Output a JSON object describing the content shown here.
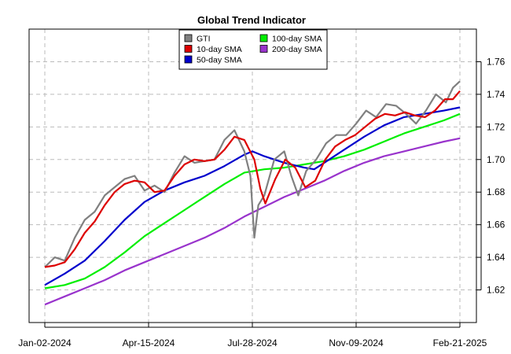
{
  "chart_data": {
    "type": "line",
    "title": "Global Trend Indicator",
    "xlabel": "",
    "ylabel": "",
    "x_ticks": [
      "Jan-02-2024",
      "Apr-15-2024",
      "Jul-28-2024",
      "Nov-09-2024",
      "Feb-21-2025"
    ],
    "x_range": [
      "2024-01-02",
      "2025-02-21"
    ],
    "y_ticks": [
      1.62,
      1.64,
      1.66,
      1.68,
      1.7,
      1.72,
      1.74,
      1.76
    ],
    "ylim": [
      1.6,
      1.78
    ],
    "y_axis_position": "right",
    "grid": true,
    "grid_style": "dashed",
    "legend_position": "top-center",
    "series": [
      {
        "name": "GTI",
        "color": "#808080",
        "x": [
          "2024-01-02",
          "2024-01-12",
          "2024-01-22",
          "2024-02-01",
          "2024-02-11",
          "2024-02-21",
          "2024-03-02",
          "2024-03-12",
          "2024-03-22",
          "2024-04-01",
          "2024-04-11",
          "2024-04-21",
          "2024-05-01",
          "2024-05-11",
          "2024-05-21",
          "2024-05-31",
          "2024-06-10",
          "2024-06-20",
          "2024-06-30",
          "2024-07-10",
          "2024-07-20",
          "2024-07-26",
          "2024-07-30",
          "2024-08-03",
          "2024-08-09",
          "2024-08-19",
          "2024-08-29",
          "2024-09-05",
          "2024-09-12",
          "2024-09-20",
          "2024-09-30",
          "2024-10-10",
          "2024-10-20",
          "2024-10-30",
          "2024-11-09",
          "2024-11-19",
          "2024-11-29",
          "2024-12-09",
          "2024-12-19",
          "2024-12-29",
          "2025-01-08",
          "2025-01-18",
          "2025-01-28",
          "2025-02-07",
          "2025-02-14",
          "2025-02-21"
        ],
        "values": [
          1.634,
          1.64,
          1.638,
          1.652,
          1.663,
          1.668,
          1.678,
          1.683,
          1.688,
          1.69,
          1.681,
          1.684,
          1.68,
          1.692,
          1.702,
          1.698,
          1.699,
          1.7,
          1.712,
          1.718,
          1.705,
          1.69,
          1.652,
          1.672,
          1.678,
          1.7,
          1.705,
          1.69,
          1.678,
          1.693,
          1.7,
          1.71,
          1.715,
          1.715,
          1.722,
          1.73,
          1.726,
          1.734,
          1.733,
          1.728,
          1.722,
          1.73,
          1.74,
          1.735,
          1.744,
          1.748
        ]
      },
      {
        "name": "10-day SMA",
        "color": "#dd0000",
        "x": [
          "2024-01-02",
          "2024-01-12",
          "2024-01-22",
          "2024-02-01",
          "2024-02-11",
          "2024-02-21",
          "2024-03-02",
          "2024-03-12",
          "2024-03-22",
          "2024-04-01",
          "2024-04-11",
          "2024-04-21",
          "2024-05-01",
          "2024-05-11",
          "2024-05-21",
          "2024-05-31",
          "2024-06-10",
          "2024-06-20",
          "2024-06-30",
          "2024-07-10",
          "2024-07-20",
          "2024-07-30",
          "2024-08-05",
          "2024-08-10",
          "2024-08-20",
          "2024-08-30",
          "2024-09-09",
          "2024-09-19",
          "2024-09-29",
          "2024-10-09",
          "2024-10-19",
          "2024-10-29",
          "2024-11-08",
          "2024-11-18",
          "2024-11-28",
          "2024-12-08",
          "2024-12-18",
          "2024-12-28",
          "2025-01-07",
          "2025-01-17",
          "2025-01-27",
          "2025-02-06",
          "2025-02-14",
          "2025-02-21"
        ],
        "values": [
          1.634,
          1.635,
          1.637,
          1.645,
          1.655,
          1.662,
          1.672,
          1.68,
          1.685,
          1.687,
          1.686,
          1.68,
          1.681,
          1.69,
          1.697,
          1.7,
          1.699,
          1.7,
          1.706,
          1.714,
          1.712,
          1.7,
          1.682,
          1.673,
          1.688,
          1.7,
          1.695,
          1.683,
          1.687,
          1.7,
          1.708,
          1.712,
          1.715,
          1.72,
          1.725,
          1.728,
          1.727,
          1.729,
          1.727,
          1.726,
          1.73,
          1.737,
          1.737,
          1.742
        ]
      },
      {
        "name": "50-day SMA",
        "color": "#0000cc",
        "x": [
          "2024-01-02",
          "2024-01-22",
          "2024-02-11",
          "2024-03-02",
          "2024-03-22",
          "2024-04-11",
          "2024-05-01",
          "2024-05-21",
          "2024-06-10",
          "2024-06-30",
          "2024-07-20",
          "2024-07-28",
          "2024-08-09",
          "2024-08-29",
          "2024-09-18",
          "2024-09-28",
          "2024-10-08",
          "2024-10-28",
          "2024-11-17",
          "2024-12-07",
          "2024-12-27",
          "2025-01-16",
          "2025-02-05",
          "2025-02-21"
        ],
        "values": [
          1.623,
          1.63,
          1.638,
          1.65,
          1.663,
          1.674,
          1.681,
          1.686,
          1.69,
          1.696,
          1.703,
          1.705,
          1.702,
          1.698,
          1.695,
          1.694,
          1.698,
          1.706,
          1.714,
          1.721,
          1.726,
          1.728,
          1.73,
          1.732
        ]
      },
      {
        "name": "100-day SMA",
        "color": "#00ee00",
        "x": [
          "2024-01-02",
          "2024-01-22",
          "2024-02-11",
          "2024-03-02",
          "2024-03-22",
          "2024-04-11",
          "2024-05-01",
          "2024-05-21",
          "2024-06-10",
          "2024-06-30",
          "2024-07-20",
          "2024-08-09",
          "2024-08-29",
          "2024-09-18",
          "2024-10-08",
          "2024-10-28",
          "2024-11-17",
          "2024-12-07",
          "2024-12-27",
          "2025-01-16",
          "2025-02-05",
          "2025-02-21"
        ],
        "values": [
          1.621,
          1.623,
          1.627,
          1.634,
          1.643,
          1.653,
          1.661,
          1.669,
          1.677,
          1.685,
          1.692,
          1.694,
          1.695,
          1.697,
          1.699,
          1.702,
          1.706,
          1.711,
          1.716,
          1.72,
          1.724,
          1.728
        ]
      },
      {
        "name": "200-day SMA",
        "color": "#9933cc",
        "x": [
          "2024-01-02",
          "2024-01-22",
          "2024-02-11",
          "2024-03-02",
          "2024-03-22",
          "2024-04-11",
          "2024-05-01",
          "2024-05-21",
          "2024-06-10",
          "2024-06-30",
          "2024-07-20",
          "2024-08-09",
          "2024-08-29",
          "2024-09-18",
          "2024-10-08",
          "2024-10-28",
          "2024-11-17",
          "2024-12-07",
          "2024-12-27",
          "2025-01-16",
          "2025-02-05",
          "2025-02-21"
        ],
        "values": [
          1.611,
          1.616,
          1.621,
          1.626,
          1.632,
          1.637,
          1.642,
          1.647,
          1.652,
          1.658,
          1.665,
          1.671,
          1.677,
          1.682,
          1.687,
          1.693,
          1.698,
          1.702,
          1.705,
          1.708,
          1.711,
          1.713
        ]
      }
    ]
  }
}
